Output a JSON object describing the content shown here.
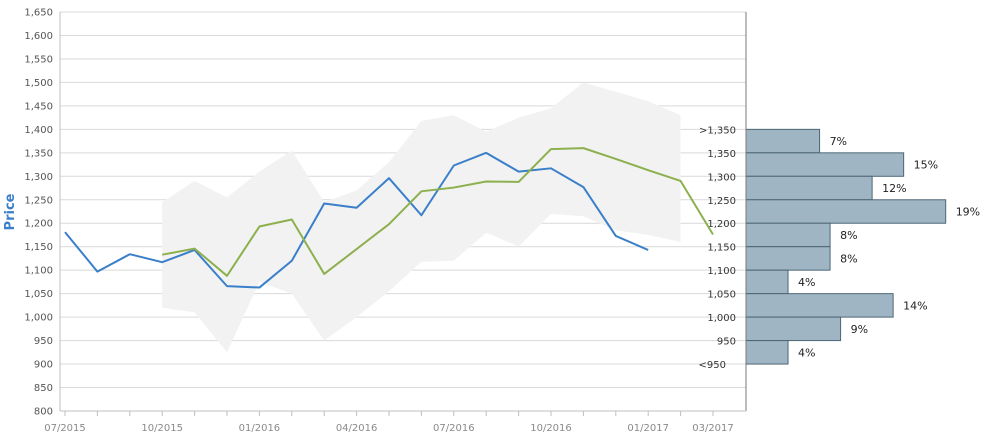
{
  "chart_data": {
    "type": "line",
    "ylabel": "Price",
    "ylim": [
      800,
      1650
    ],
    "yticks": [
      "800",
      "850",
      "900",
      "950",
      "1,000",
      "1,050",
      "1,100",
      "1,150",
      "1,200",
      "1,250",
      "1,300",
      "1,350",
      "1,400",
      "1,450",
      "1,500",
      "1,550",
      "1,600",
      "1,650"
    ],
    "ytick_values": [
      800,
      850,
      900,
      950,
      1000,
      1050,
      1100,
      1150,
      1200,
      1250,
      1300,
      1350,
      1400,
      1450,
      1500,
      1550,
      1600,
      1650
    ],
    "x_months": [
      "2015-07",
      "2015-08",
      "2015-09",
      "2015-10",
      "2015-11",
      "2015-12",
      "2016-01",
      "2016-02",
      "2016-03",
      "2016-04",
      "2016-05",
      "2016-06",
      "2016-07",
      "2016-08",
      "2016-09",
      "2016-10",
      "2016-11",
      "2016-12",
      "2017-01",
      "2017-02",
      "2017-03"
    ],
    "xtick_labels": [
      "07/2015",
      "10/2015",
      "01/2016",
      "04/2016",
      "07/2016",
      "10/2016",
      "01/2017",
      "03/2017"
    ],
    "xtick_months": [
      "2015-07",
      "2015-10",
      "2016-01",
      "2016-04",
      "2016-07",
      "2016-10",
      "2017-01",
      "2017-03"
    ],
    "grid": true,
    "series": [
      {
        "color": "#3a7fc9",
        "x": [
          "2015-07",
          "2015-08",
          "2015-09",
          "2015-10",
          "2015-11",
          "2015-12",
          "2016-01",
          "2016-02",
          "2016-03",
          "2016-04",
          "2016-05",
          "2016-06",
          "2016-07",
          "2016-08",
          "2016-09",
          "2016-10",
          "2016-11",
          "2016-12",
          "2017-01"
        ],
        "values": [
          1181,
          1097,
          1134,
          1117,
          1143,
          1066,
          1063,
          1120,
          1242,
          1233,
          1296,
          1217,
          1323,
          1350,
          1310,
          1317,
          1277,
          1173,
          1143
        ]
      },
      {
        "color": "#8db04e",
        "x": [
          "2015-10",
          "2015-11",
          "2015-12",
          "2016-01",
          "2016-02",
          "2016-03",
          "2016-04",
          "2016-05",
          "2016-06",
          "2016-07",
          "2016-08",
          "2016-09",
          "2016-10",
          "2016-11",
          "2016-12",
          "2017-01",
          "2017-02",
          "2017-03"
        ],
        "values": [
          1133,
          1146,
          1088,
          1193,
          1208,
          1092,
          1145,
          1198,
          1268,
          1276,
          1289,
          1288,
          1358,
          1360,
          1337,
          1313,
          1290,
          1176
        ]
      }
    ],
    "band": {
      "color": "#f2f2f2",
      "x": [
        "2015-10",
        "2015-11",
        "2015-12",
        "2016-01",
        "2016-02",
        "2016-03",
        "2016-04",
        "2016-05",
        "2016-06",
        "2016-07",
        "2016-08",
        "2016-09",
        "2016-10",
        "2016-11",
        "2016-12",
        "2017-01",
        "2017-02"
      ],
      "upper": [
        1245,
        1290,
        1255,
        1310,
        1355,
        1245,
        1270,
        1330,
        1418,
        1430,
        1395,
        1425,
        1445,
        1500,
        1480,
        1460,
        1430
      ],
      "lower": [
        1020,
        1010,
        925,
        1075,
        1050,
        950,
        1000,
        1055,
        1118,
        1120,
        1180,
        1150,
        1220,
        1215,
        1185,
        1175,
        1160
      ]
    },
    "histogram": {
      "color": "#9fb5c3",
      "bins": [
        {
          "label": ">1,350",
          "low": 1350,
          "high": 1400,
          "pct": 7,
          "pct_label": "7%"
        },
        {
          "label": "1,350",
          "low": 1300,
          "high": 1350,
          "pct": 15,
          "pct_label": "15%"
        },
        {
          "label": "1,300",
          "low": 1250,
          "high": 1300,
          "pct": 12,
          "pct_label": "12%"
        },
        {
          "label": "1,250",
          "low": 1200,
          "high": 1250,
          "pct": 19,
          "pct_label": "19%"
        },
        {
          "label": "1,200",
          "low": 1150,
          "high": 1200,
          "pct": 8,
          "pct_label": "8%"
        },
        {
          "label": "1,150",
          "low": 1100,
          "high": 1150,
          "pct": 8,
          "pct_label": "8%"
        },
        {
          "label": "1,100",
          "low": 1050,
          "high": 1100,
          "pct": 4,
          "pct_label": "4%"
        },
        {
          "label": "1,050",
          "low": 1000,
          "high": 1050,
          "pct": 14,
          "pct_label": "14%"
        },
        {
          "label": "1,000",
          "low": 950,
          "high": 1000,
          "pct": 9,
          "pct_label": "9%"
        },
        {
          "label": "950",
          "low": 900,
          "high": 950,
          "pct": 4,
          "pct_label": "4%"
        }
      ],
      "extra_labels": [
        {
          "label": "<950",
          "at": 900
        }
      ]
    }
  }
}
